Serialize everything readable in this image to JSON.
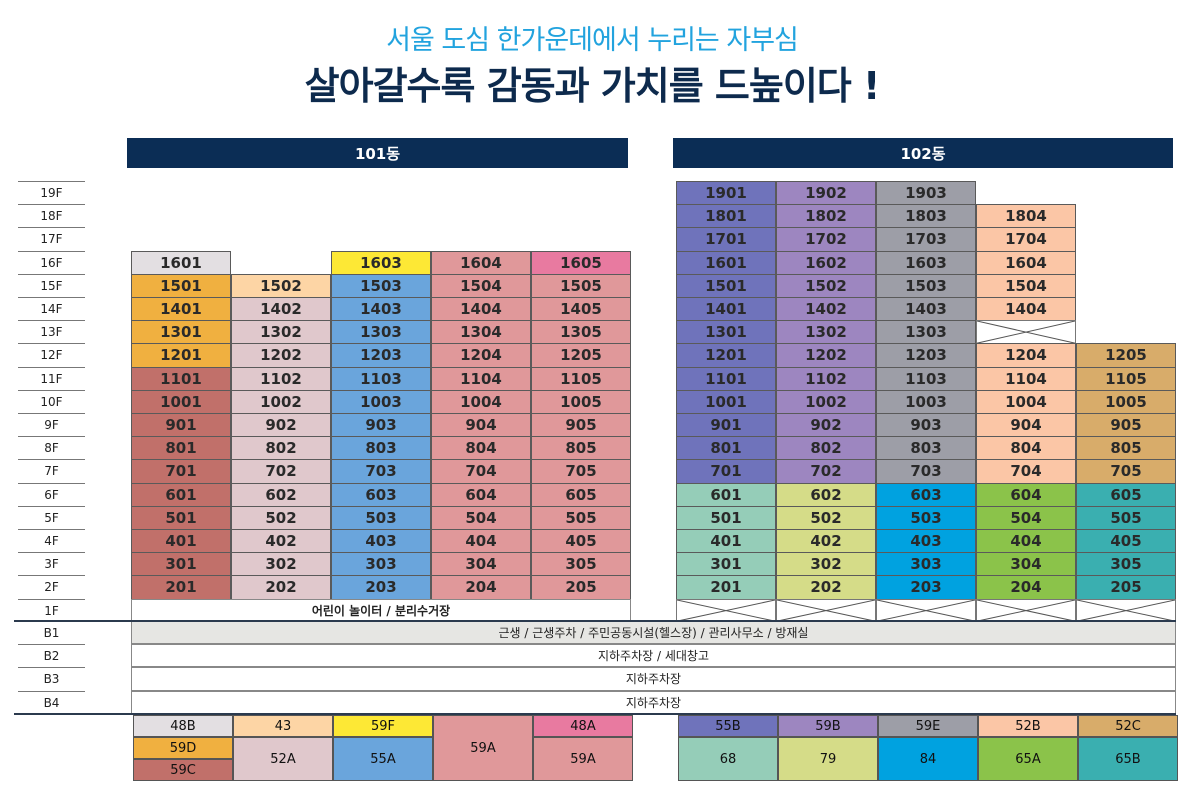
{
  "header": {
    "subtitle": "서울 도심 한가운데에서 누리는 자부심",
    "title": "살아갈수록 감동과 가치를 드높이다 !"
  },
  "floors": [
    "19F",
    "18F",
    "17F",
    "16F",
    "15F",
    "14F",
    "13F",
    "12F",
    "11F",
    "10F",
    "9F",
    "8F",
    "7F",
    "6F",
    "5F",
    "4F",
    "3F",
    "2F",
    "1F",
    "B1",
    "B2",
    "B3",
    "B4"
  ],
  "buildings": [
    {
      "name": "101동",
      "ground": {
        "text": "어린이 놀이터 / 분리수거장"
      },
      "columns": [
        {
          "top": 16,
          "units": [
            "1601",
            "1501",
            "1401",
            "1301",
            "1201",
            "1101",
            "1001",
            "901",
            "801",
            "701",
            "601",
            "501",
            "401",
            "301",
            "201"
          ],
          "colors": [
            {
              "from": 16,
              "to": 16,
              "color": "#e3dfe2"
            },
            {
              "from": 12,
              "to": 15,
              "color": "#f0b040"
            },
            {
              "from": 2,
              "to": 11,
              "color": "#c1706a"
            }
          ]
        },
        {
          "top": 15,
          "units": [
            "1502",
            "1402",
            "1302",
            "1202",
            "1102",
            "1002",
            "902",
            "802",
            "702",
            "602",
            "502",
            "402",
            "302",
            "202"
          ],
          "colors": [
            {
              "from": 15,
              "to": 15,
              "color": "#fdd5a5"
            },
            {
              "from": 2,
              "to": 14,
              "color": "#e0c8cc"
            }
          ]
        },
        {
          "top": 16,
          "units": [
            "1603",
            "1503",
            "1403",
            "1303",
            "1203",
            "1103",
            "1003",
            "903",
            "803",
            "703",
            "603",
            "503",
            "403",
            "303",
            "203"
          ],
          "colors": [
            {
              "from": 16,
              "to": 16,
              "color": "#fde835"
            },
            {
              "from": 2,
              "to": 15,
              "color": "#6aa5dc"
            }
          ]
        },
        {
          "top": 16,
          "units": [
            "1604",
            "1504",
            "1404",
            "1304",
            "1204",
            "1104",
            "1004",
            "904",
            "804",
            "704",
            "604",
            "504",
            "404",
            "304",
            "204"
          ],
          "colors": [
            {
              "from": 2,
              "to": 16,
              "color": "#e0989a"
            }
          ]
        },
        {
          "top": 16,
          "units": [
            "1605",
            "1505",
            "1405",
            "1305",
            "1205",
            "1105",
            "1005",
            "905",
            "805",
            "705",
            "605",
            "505",
            "405",
            "305",
            "205"
          ],
          "colors": [
            {
              "from": 16,
              "to": 16,
              "color": "#e87aa0"
            },
            {
              "from": 2,
              "to": 15,
              "color": "#e0989a"
            }
          ]
        }
      ],
      "legend": [
        [
          {
            "label": "48B",
            "color": "#e3dfe2",
            "span": 1
          },
          {
            "label": "59D",
            "color": "#f0b040",
            "span": 1
          },
          {
            "label": "59C",
            "color": "#c1706a",
            "span": 1
          }
        ],
        [
          {
            "label": "43",
            "color": "#fdd5a5",
            "span": 1
          },
          {
            "label": "52A",
            "color": "#e0c8cc",
            "span": 2
          }
        ],
        [
          {
            "label": "59F",
            "color": "#fde835",
            "span": 1
          },
          {
            "label": "55A",
            "color": "#6aa5dc",
            "span": 2
          }
        ],
        [
          {
            "label": "59A",
            "color": "#e0989a",
            "span": 3
          }
        ],
        [
          {
            "label": "48A",
            "color": "#e87aa0",
            "span": 1
          },
          {
            "label": "59A",
            "color": "#e0989a",
            "span": 2
          }
        ]
      ]
    },
    {
      "name": "102동",
      "ground": {
        "blocked": true
      },
      "columns": [
        {
          "top": 19,
          "units": [
            "1901",
            "1801",
            "1701",
            "1601",
            "1501",
            "1401",
            "1301",
            "1201",
            "1101",
            "1001",
            "901",
            "801",
            "701",
            "601",
            "501",
            "401",
            "301",
            "201"
          ],
          "colors": [
            {
              "from": 7,
              "to": 19,
              "color": "#6f73bb"
            },
            {
              "from": 2,
              "to": 6,
              "color": "#95cdb8"
            }
          ]
        },
        {
          "top": 19,
          "units": [
            "1902",
            "1802",
            "1702",
            "1602",
            "1502",
            "1402",
            "1302",
            "1202",
            "1102",
            "1002",
            "902",
            "802",
            "702",
            "602",
            "502",
            "402",
            "302",
            "202"
          ],
          "colors": [
            {
              "from": 7,
              "to": 19,
              "color": "#9d86c0"
            },
            {
              "from": 2,
              "to": 6,
              "color": "#d5dc88"
            }
          ]
        },
        {
          "top": 19,
          "units": [
            "1903",
            "1803",
            "1703",
            "1603",
            "1503",
            "1403",
            "1303",
            "1203",
            "1103",
            "1003",
            "903",
            "803",
            "703",
            "603",
            "503",
            "403",
            "303",
            "203"
          ],
          "colors": [
            {
              "from": 7,
              "to": 19,
              "color": "#9d9ea7"
            },
            {
              "from": 2,
              "to": 6,
              "color": "#00a2e0"
            }
          ]
        },
        {
          "top": 18,
          "units": [
            "1804",
            "1704",
            "1604",
            "1504",
            "1404",
            null,
            "1204",
            "1104",
            "1004",
            "904",
            "804",
            "704",
            "604",
            "504",
            "404",
            "304",
            "204"
          ],
          "colors": [
            {
              "from": 7,
              "to": 18,
              "color": "#fbc6a6"
            },
            {
              "from": 2,
              "to": 6,
              "color": "#8bc34a"
            }
          ]
        },
        {
          "top": 12,
          "units": [
            "1205",
            "1105",
            "1005",
            "905",
            "805",
            "705",
            "605",
            "505",
            "405",
            "305",
            "205"
          ],
          "colors": [
            {
              "from": 7,
              "to": 12,
              "color": "#d8ac6a"
            },
            {
              "from": 2,
              "to": 6,
              "color": "#3aafb0"
            }
          ]
        }
      ],
      "legend": [
        [
          {
            "label": "55B",
            "color": "#6f73bb",
            "span": 1
          },
          {
            "label": "68",
            "color": "#95cdb8",
            "span": 2
          }
        ],
        [
          {
            "label": "59B",
            "color": "#9d86c0",
            "span": 1
          },
          {
            "label": "79",
            "color": "#d5dc88",
            "span": 2
          }
        ],
        [
          {
            "label": "59E",
            "color": "#9d9ea7",
            "span": 1
          },
          {
            "label": "84",
            "color": "#00a2e0",
            "span": 2
          }
        ],
        [
          {
            "label": "52B",
            "color": "#fbc6a6",
            "span": 1
          },
          {
            "label": "65A",
            "color": "#8bc34a",
            "span": 2
          }
        ],
        [
          {
            "label": "52C",
            "color": "#d8ac6a",
            "span": 1
          },
          {
            "label": "65B",
            "color": "#3aafb0",
            "span": 2
          }
        ]
      ]
    }
  ],
  "basement": [
    {
      "text": "근생 / 근생주차 / 주민공동시설(헬스장) / 관리사무소 / 방재실",
      "color": "#e6e6e3"
    },
    {
      "text": "지하주차장 / 세대창고",
      "color": "#ffffff"
    },
    {
      "text": "지하주차장",
      "color": "#ffffff"
    },
    {
      "text": "지하주차장",
      "color": "#ffffff"
    }
  ]
}
